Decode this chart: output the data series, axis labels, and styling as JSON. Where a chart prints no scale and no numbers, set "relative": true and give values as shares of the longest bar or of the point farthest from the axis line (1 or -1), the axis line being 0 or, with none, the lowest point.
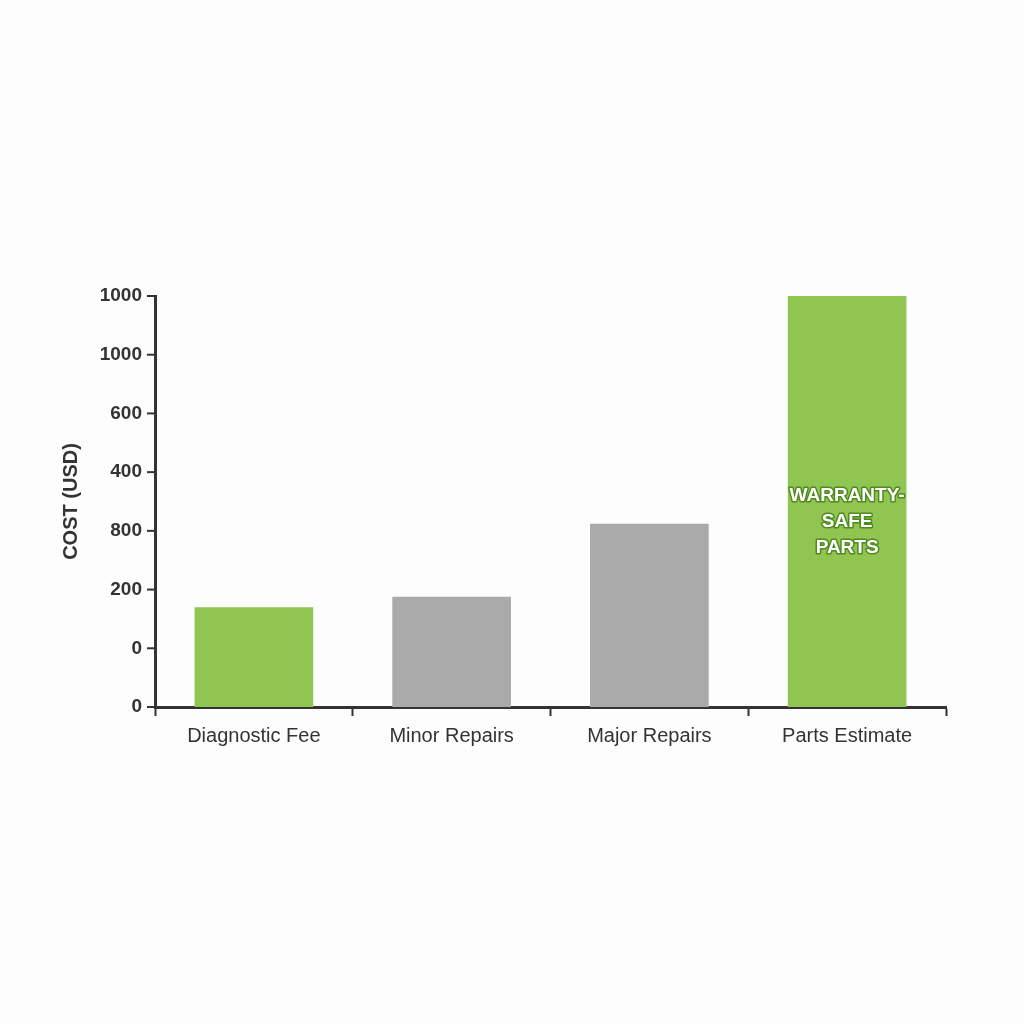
{
  "chart_data": {
    "type": "bar",
    "ylabel": "COST (USD)",
    "categories": [
      "Diagnostic Fee",
      "Minor Repairs",
      "Major Repairs",
      "Parts Estimate"
    ],
    "values": [
      0.243,
      0.268,
      0.446,
      1
    ],
    "colors": [
      "#8fc550",
      "#aaaaaa",
      "#aaaaaa",
      "#8fc550"
    ],
    "relative": true,
    "grid": false,
    "annotations": [
      "WARRANTY-SAFE PARTS",
      "1000",
      "1000",
      "600",
      "400",
      "800",
      "200",
      "0",
      "0"
    ]
  }
}
